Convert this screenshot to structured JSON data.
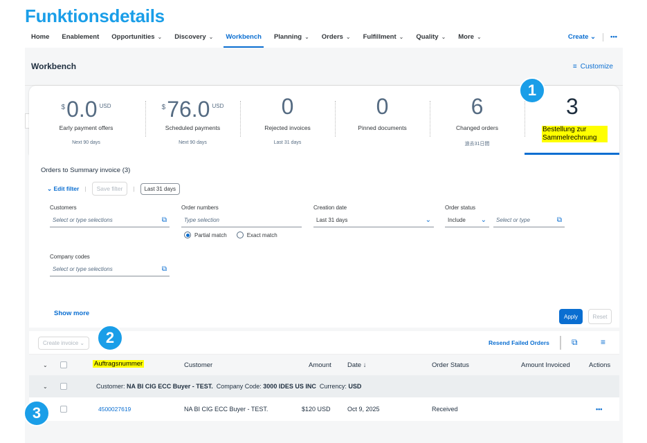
{
  "page_title": "Funktionsdetails",
  "shell": {
    "nav": [
      {
        "label": "Home",
        "chevron": false
      },
      {
        "label": "Enablement",
        "chevron": false
      },
      {
        "label": "Opportunities",
        "chevron": true
      },
      {
        "label": "Discovery",
        "chevron": true
      },
      {
        "label": "Workbench",
        "chevron": false,
        "active": true
      },
      {
        "label": "Planning",
        "chevron": true
      },
      {
        "label": "Orders",
        "chevron": true
      },
      {
        "label": "Fulfillment",
        "chevron": true
      },
      {
        "label": "Quality",
        "chevron": true
      },
      {
        "label": "More",
        "chevron": true
      }
    ],
    "create_label": "Create",
    "overflow_label": "•••"
  },
  "workbench": {
    "title": "Workbench",
    "customize_label": "Customize"
  },
  "tiles": [
    {
      "currency": "$",
      "value": "0.0",
      "unit": "USD",
      "label": "Early payment offers",
      "sub": "Next 90 days"
    },
    {
      "currency": "$",
      "value": "76.0",
      "unit": "USD",
      "label": "Scheduled payments",
      "sub": "Next 90 days"
    },
    {
      "currency": "",
      "value": "0",
      "unit": "",
      "label": "Rejected invoices",
      "sub": "Last 31 days"
    },
    {
      "currency": "",
      "value": "0",
      "unit": "",
      "label": "Pinned documents",
      "sub": ""
    },
    {
      "currency": "",
      "value": "6",
      "unit": "",
      "label": "Changed orders",
      "sub": "過去31日間"
    },
    {
      "currency": "",
      "value": "3",
      "unit": "",
      "label": "Bestellung zur Sammelrechnung",
      "sub": ""
    }
  ],
  "filter": {
    "title": "Orders to Summary invoice",
    "count": "(3)",
    "edit_filter": "Edit filter",
    "save_filter": "Save filter",
    "date_chip": "Last 31 days",
    "customers_label": "Customers",
    "customers_placeholder": "Select or type selections",
    "order_numbers_label": "Order numbers",
    "order_numbers_placeholder": "Type selection",
    "partial_match": "Partial match",
    "exact_match": "Exact match",
    "creation_date_label": "Creation date",
    "creation_date_value": "Last 31 days",
    "order_status_label": "Order status",
    "order_status_op": "Include",
    "order_status_placeholder": "Select or type",
    "company_codes_label": "Company codes",
    "company_codes_placeholder": "Select or type selections",
    "show_more": "Show more",
    "apply": "Apply",
    "reset": "Reset"
  },
  "toolbar": {
    "create_invoice": "Create invoice",
    "resend_failed": "Resend Failed Orders"
  },
  "table": {
    "columns": {
      "order_number": "Auftragsnummer",
      "customer": "Customer",
      "amount": "Amount",
      "date": "Date ↓",
      "order_status": "Order Status",
      "amount_invoiced": "Amount Invoiced",
      "actions": "Actions"
    },
    "group": {
      "customer_label": "Customer:",
      "customer_value": "NA BI CIG ECC Buyer - TEST.",
      "company_label": "Company Code:",
      "company_value": "3000 IDES US INC",
      "currency_label": "Currency:",
      "currency_value": "USD"
    },
    "rows": [
      {
        "order_number": "4500027619",
        "customer": "NA BI CIG ECC Buyer - TEST.",
        "amount": "$120 USD",
        "date": "Oct 9, 2025",
        "status": "Received",
        "amount_invoiced": "",
        "actions": "•••"
      }
    ]
  },
  "badges": [
    "1",
    "2",
    "3"
  ],
  "colors": {
    "accent": "#0a6ed1",
    "badge": "#1a9ee8",
    "highlight": "#ffff00"
  }
}
